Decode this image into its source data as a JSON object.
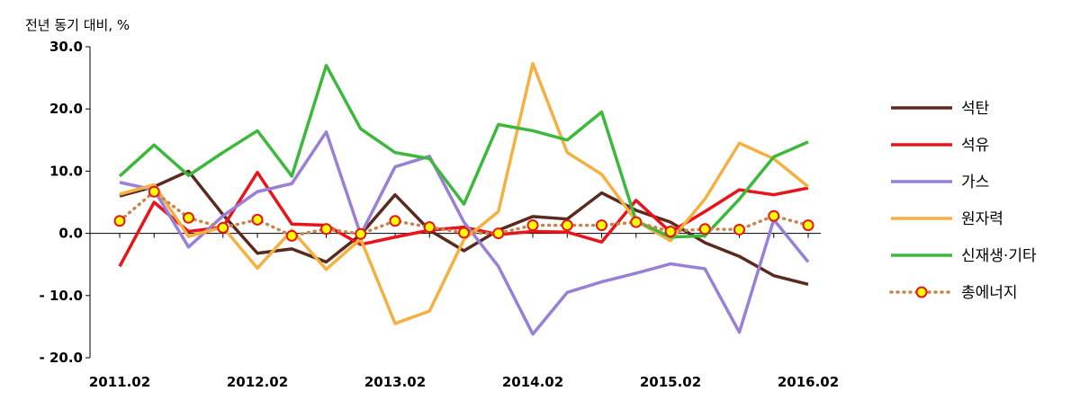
{
  "chart_data": {
    "type": "line",
    "ylabel": "전년 동기 대비, %",
    "ylim": [
      -20,
      30
    ],
    "yticks": [
      30,
      20,
      10,
      0,
      -10,
      -20
    ],
    "ytick_labels": [
      "30.0",
      "20.0",
      "10.0",
      "0.0",
      "- 10.0",
      "- 20.0"
    ],
    "x": [
      "2011.02",
      "2011.03",
      "2011.04",
      "2012.01",
      "2012.02",
      "2012.03",
      "2012.04",
      "2013.01",
      "2013.02",
      "2013.03",
      "2013.04",
      "2014.01",
      "2014.02",
      "2014.03",
      "2014.04",
      "2015.01",
      "2015.02",
      "2015.03",
      "2015.04",
      "2016.01",
      "2016.02"
    ],
    "xtick_labels": [
      "2011.02",
      "2012.02",
      "2013.02",
      "2014.02",
      "2015.02",
      "2016.02"
    ],
    "grid": false,
    "legend_position": "right",
    "series": [
      {
        "name": "석탄",
        "color": "#5a2a1e",
        "style": "line",
        "values": [
          6.0,
          7.5,
          10.0,
          3.0,
          -3.2,
          -2.5,
          -4.6,
          -0.2,
          6.2,
          0.5,
          -2.8,
          0.5,
          2.7,
          2.3,
          6.5,
          3.7,
          1.8,
          -1.5,
          -3.7,
          -6.8,
          -8.2
        ]
      },
      {
        "name": "석유",
        "color": "#e8141b",
        "style": "line",
        "values": [
          -5.3,
          5.0,
          0.3,
          1.0,
          9.8,
          1.5,
          1.3,
          -1.8,
          -0.6,
          0.5,
          1.0,
          -0.2,
          0.3,
          0.2,
          -1.4,
          5.3,
          0.2,
          3.5,
          7.0,
          6.2,
          7.3
        ]
      },
      {
        "name": "가스",
        "color": "#9a7fd6",
        "style": "line",
        "values": [
          8.2,
          7.0,
          -2.2,
          2.8,
          6.7,
          8.0,
          16.3,
          -0.2,
          10.7,
          12.4,
          1.8,
          -5.3,
          -16.2,
          -9.5,
          -7.8,
          -6.4,
          -4.9,
          -5.7,
          -15.9,
          2.2,
          -4.6
        ]
      },
      {
        "name": "원자력",
        "color": "#f4b041",
        "style": "line",
        "values": [
          6.3,
          7.8,
          -0.5,
          1.0,
          -5.6,
          0.5,
          -5.8,
          -0.9,
          -14.5,
          -12.5,
          -1.0,
          3.5,
          27.3,
          13.0,
          9.5,
          2.0,
          -1.2,
          5.5,
          14.5,
          12.0,
          7.5
        ]
      },
      {
        "name": "신재생·기타",
        "color": "#3cb83c",
        "style": "line",
        "values": [
          9.2,
          14.2,
          9.3,
          13.0,
          16.5,
          9.2,
          27.0,
          16.8,
          13.0,
          12.0,
          4.7,
          17.5,
          16.5,
          15.0,
          19.5,
          2.0,
          -0.6,
          -0.4,
          5.5,
          12.3,
          14.7
        ]
      },
      {
        "name": "총에너지",
        "color": "#c8844d",
        "style": "dotted-markers",
        "marker_fill": "#ffff00",
        "marker_stroke": "#e8141b",
        "values": [
          2.0,
          6.7,
          2.5,
          0.9,
          2.2,
          -0.4,
          0.7,
          -0.1,
          2.0,
          1.0,
          0.1,
          0.0,
          1.3,
          1.3,
          1.3,
          1.8,
          0.3,
          0.7,
          0.6,
          2.8,
          1.3
        ]
      }
    ]
  }
}
